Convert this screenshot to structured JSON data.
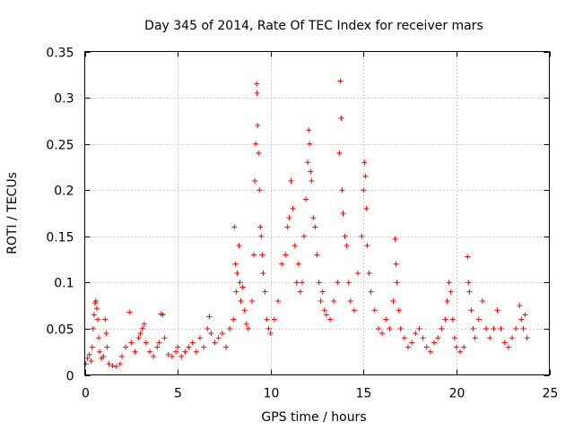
{
  "chart_data": {
    "type": "scatter",
    "title": "Day 345 of 2014, Rate Of TEC Index for receiver mars",
    "xlabel": "GPS time / hours",
    "ylabel": "ROTI / TECUs",
    "xlim": [
      0,
      25
    ],
    "ylim": [
      0,
      0.35
    ],
    "xticks": [
      0,
      5,
      10,
      15,
      20,
      25
    ],
    "xtick_labels": [
      "0",
      "5",
      "10",
      "15",
      "20",
      "25"
    ],
    "yticks": [
      0,
      0.05,
      0.1,
      0.15,
      0.2,
      0.25,
      0.3,
      0.35
    ],
    "ytick_labels": [
      "0",
      "0.05",
      "0.1",
      "0.15",
      "0.2",
      "0.25",
      "0.3",
      "0.35"
    ],
    "grid": true,
    "marker": "+",
    "marker_color": "#ff0000",
    "series": [
      {
        "name": "ROTI",
        "points": [
          [
            0.05,
            0.012
          ],
          [
            0.15,
            0.018
          ],
          [
            0.25,
            0.022
          ],
          [
            0.35,
            0.015
          ],
          [
            0.4,
            0.03
          ],
          [
            0.45,
            0.05
          ],
          [
            0.5,
            0.065
          ],
          [
            0.55,
            0.078
          ],
          [
            0.6,
            0.08
          ],
          [
            0.65,
            0.072
          ],
          [
            0.7,
            0.06
          ],
          [
            0.75,
            0.04
          ],
          [
            0.8,
            0.025
          ],
          [
            0.9,
            0.018
          ],
          [
            1.0,
            0.02
          ],
          [
            1.1,
            0.06
          ],
          [
            1.15,
            0.045
          ],
          [
            1.2,
            0.03
          ],
          [
            1.3,
            0.012
          ],
          [
            1.5,
            0.01
          ],
          [
            1.7,
            0.009
          ],
          [
            1.9,
            0.012
          ],
          [
            2.0,
            0.02
          ],
          [
            2.2,
            0.03
          ],
          [
            2.4,
            0.068
          ],
          [
            2.5,
            0.035
          ],
          [
            2.7,
            0.025
          ],
          [
            2.9,
            0.04
          ],
          [
            3.0,
            0.045
          ],
          [
            3.1,
            0.05
          ],
          [
            3.2,
            0.055
          ],
          [
            3.3,
            0.035
          ],
          [
            3.5,
            0.025
          ],
          [
            3.7,
            0.02
          ],
          [
            3.9,
            0.03
          ],
          [
            4.0,
            0.035
          ],
          [
            4.1,
            0.066
          ],
          [
            4.2,
            0.065
          ],
          [
            4.3,
            0.04
          ],
          [
            4.5,
            0.022
          ],
          [
            4.7,
            0.02
          ],
          [
            4.9,
            0.025
          ],
          [
            5.0,
            0.03
          ],
          [
            5.2,
            0.02
          ],
          [
            5.4,
            0.025
          ],
          [
            5.6,
            0.03
          ],
          [
            5.8,
            0.035
          ],
          [
            6.0,
            0.025
          ],
          [
            6.2,
            0.04
          ],
          [
            6.4,
            0.03
          ],
          [
            6.6,
            0.05
          ],
          [
            6.7,
            0.063
          ],
          [
            6.8,
            0.045
          ],
          [
            7.0,
            0.035
          ],
          [
            7.2,
            0.04
          ],
          [
            7.4,
            0.045
          ],
          [
            7.6,
            0.03
          ],
          [
            7.8,
            0.05
          ],
          [
            8.0,
            0.06
          ],
          [
            8.05,
            0.16
          ],
          [
            8.1,
            0.12
          ],
          [
            8.15,
            0.09
          ],
          [
            8.2,
            0.11
          ],
          [
            8.3,
            0.14
          ],
          [
            8.35,
            0.1
          ],
          [
            8.4,
            0.08
          ],
          [
            8.5,
            0.095
          ],
          [
            8.6,
            0.07
          ],
          [
            8.7,
            0.055
          ],
          [
            8.8,
            0.05
          ],
          [
            9.0,
            0.08
          ],
          [
            9.1,
            0.13
          ],
          [
            9.15,
            0.21
          ],
          [
            9.2,
            0.25
          ],
          [
            9.25,
            0.315
          ],
          [
            9.27,
            0.305
          ],
          [
            9.3,
            0.27
          ],
          [
            9.35,
            0.24
          ],
          [
            9.4,
            0.2
          ],
          [
            9.45,
            0.16
          ],
          [
            9.5,
            0.15
          ],
          [
            9.55,
            0.13
          ],
          [
            9.6,
            0.11
          ],
          [
            9.7,
            0.09
          ],
          [
            9.8,
            0.06
          ],
          [
            9.9,
            0.05
          ],
          [
            10.0,
            0.045
          ],
          [
            10.2,
            0.06
          ],
          [
            10.4,
            0.08
          ],
          [
            10.6,
            0.12
          ],
          [
            10.8,
            0.13
          ],
          [
            10.9,
            0.16
          ],
          [
            11.0,
            0.17
          ],
          [
            11.1,
            0.21
          ],
          [
            11.2,
            0.18
          ],
          [
            11.3,
            0.14
          ],
          [
            11.4,
            0.1
          ],
          [
            11.5,
            0.12
          ],
          [
            11.6,
            0.09
          ],
          [
            11.7,
            0.1
          ],
          [
            11.8,
            0.15
          ],
          [
            11.9,
            0.19
          ],
          [
            12.0,
            0.23
          ],
          [
            12.05,
            0.265
          ],
          [
            12.1,
            0.25
          ],
          [
            12.15,
            0.22
          ],
          [
            12.2,
            0.21
          ],
          [
            12.3,
            0.17
          ],
          [
            12.4,
            0.16
          ],
          [
            12.5,
            0.13
          ],
          [
            12.6,
            0.1
          ],
          [
            12.7,
            0.08
          ],
          [
            12.8,
            0.09
          ],
          [
            12.9,
            0.07
          ],
          [
            13.0,
            0.065
          ],
          [
            13.2,
            0.06
          ],
          [
            13.4,
            0.08
          ],
          [
            13.6,
            0.1
          ],
          [
            13.7,
            0.24
          ],
          [
            13.75,
            0.318
          ],
          [
            13.8,
            0.278
          ],
          [
            13.85,
            0.2
          ],
          [
            13.9,
            0.175
          ],
          [
            14.0,
            0.15
          ],
          [
            14.1,
            0.14
          ],
          [
            14.2,
            0.1
          ],
          [
            14.3,
            0.08
          ],
          [
            14.5,
            0.07
          ],
          [
            14.7,
            0.11
          ],
          [
            14.9,
            0.15
          ],
          [
            15.0,
            0.2
          ],
          [
            15.05,
            0.23
          ],
          [
            15.1,
            0.215
          ],
          [
            15.15,
            0.18
          ],
          [
            15.2,
            0.14
          ],
          [
            15.3,
            0.11
          ],
          [
            15.4,
            0.09
          ],
          [
            15.6,
            0.07
          ],
          [
            15.8,
            0.05
          ],
          [
            16.0,
            0.045
          ],
          [
            16.2,
            0.06
          ],
          [
            16.4,
            0.05
          ],
          [
            16.6,
            0.08
          ],
          [
            16.7,
            0.147
          ],
          [
            16.75,
            0.12
          ],
          [
            16.8,
            0.1
          ],
          [
            16.9,
            0.07
          ],
          [
            17.0,
            0.05
          ],
          [
            17.2,
            0.04
          ],
          [
            17.4,
            0.03
          ],
          [
            17.6,
            0.035
          ],
          [
            17.8,
            0.045
          ],
          [
            18.0,
            0.05
          ],
          [
            18.2,
            0.04
          ],
          [
            18.4,
            0.03
          ],
          [
            18.6,
            0.025
          ],
          [
            18.8,
            0.035
          ],
          [
            19.0,
            0.04
          ],
          [
            19.2,
            0.05
          ],
          [
            19.4,
            0.06
          ],
          [
            19.5,
            0.08
          ],
          [
            19.6,
            0.1
          ],
          [
            19.7,
            0.09
          ],
          [
            19.8,
            0.06
          ],
          [
            19.9,
            0.04
          ],
          [
            20.0,
            0.03
          ],
          [
            20.2,
            0.025
          ],
          [
            20.4,
            0.03
          ],
          [
            20.6,
            0.128
          ],
          [
            20.65,
            0.1
          ],
          [
            20.7,
            0.09
          ],
          [
            20.8,
            0.07
          ],
          [
            20.9,
            0.05
          ],
          [
            21.0,
            0.04
          ],
          [
            21.2,
            0.06
          ],
          [
            21.4,
            0.08
          ],
          [
            21.6,
            0.05
          ],
          [
            21.8,
            0.04
          ],
          [
            22.0,
            0.05
          ],
          [
            22.2,
            0.07
          ],
          [
            22.4,
            0.05
          ],
          [
            22.6,
            0.035
          ],
          [
            22.8,
            0.03
          ],
          [
            23.0,
            0.04
          ],
          [
            23.2,
            0.05
          ],
          [
            23.4,
            0.075
          ],
          [
            23.5,
            0.06
          ],
          [
            23.6,
            0.05
          ],
          [
            23.7,
            0.065
          ],
          [
            23.8,
            0.04
          ]
        ]
      }
    ]
  }
}
